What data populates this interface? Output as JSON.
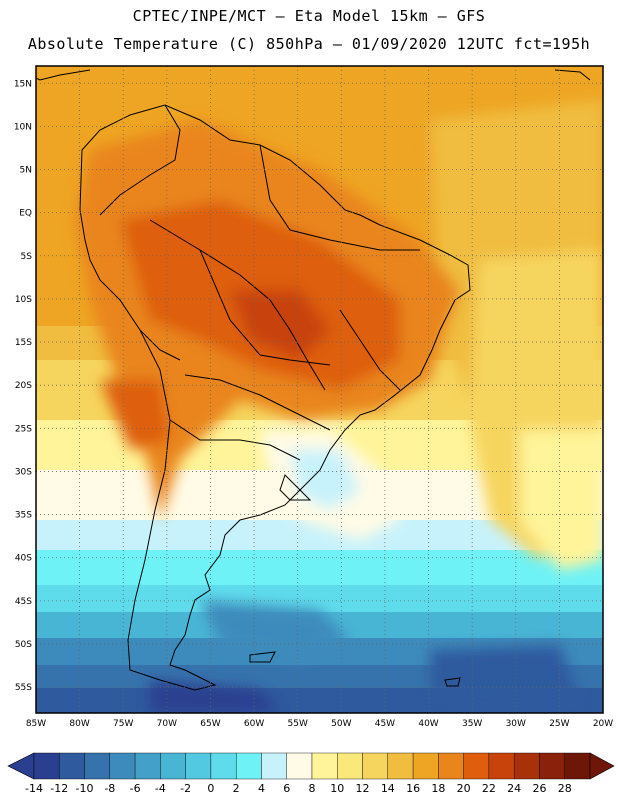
{
  "header": {
    "line1": "CPTEC/INPE/MCT –  Eta Model 15km – GFS",
    "line2": "Absolute Temperature (C) 850hPa – 01/09/2020 12UTC fct=195h"
  },
  "map": {
    "lon_range": [
      -85,
      -20
    ],
    "lat_range": [
      -58,
      17
    ],
    "lon_ticks": [
      "85W",
      "80W",
      "75W",
      "70W",
      "65W",
      "60W",
      "55W",
      "50W",
      "45W",
      "40W",
      "35W",
      "30W",
      "25W",
      "20W"
    ],
    "lat_ticks": [
      "15N",
      "10N",
      "5N",
      "EQ",
      "5S",
      "10S",
      "15S",
      "20S",
      "25S",
      "30S",
      "35S",
      "40S",
      "45S",
      "50S",
      "55S"
    ]
  },
  "colorbar": {
    "labels": [
      "-14",
      "-12",
      "-10",
      "-8",
      "-6",
      "-4",
      "-2",
      "0",
      "2",
      "4",
      "6",
      "8",
      "10",
      "12",
      "14",
      "16",
      "18",
      "20",
      "22",
      "24",
      "26",
      "28"
    ],
    "colors": [
      "#2a3f8f",
      "#2f5a9e",
      "#3673ad",
      "#3d8bbc",
      "#43a1c9",
      "#49b5d5",
      "#52c8e1",
      "#5fdcec",
      "#6ef2f6",
      "#c8f2fb",
      "#fffbe6",
      "#fff49a",
      "#fbe87a",
      "#f6d55e",
      "#f0bd40",
      "#eea523",
      "#e9851a",
      "#de5e0e",
      "#c8430b",
      "#a8310a",
      "#8a210a",
      "#6e1608"
    ]
  }
}
